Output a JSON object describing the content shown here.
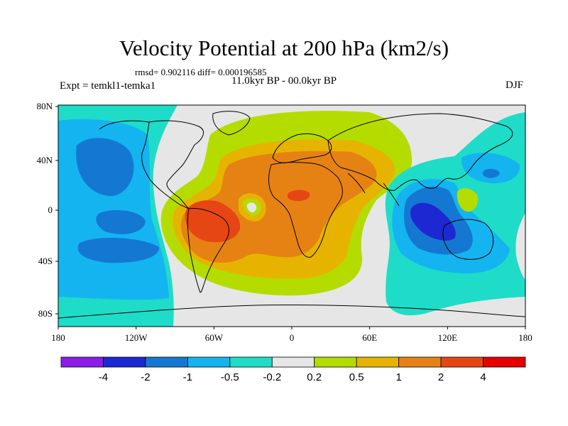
{
  "header": {
    "title": "Velocity Potential at 200 hPa (km2/s)",
    "stats": "rmsd= 0.902116 diff= 0.000196585",
    "experiment": "Expt = temkl1-temka1",
    "period": "11.0kyr BP - 00.0kyr BP",
    "season": "DJF"
  },
  "axes": {
    "lat_ticks": [
      "80N",
      "40N",
      "0",
      "40S",
      "80S"
    ],
    "lon_ticks": [
      "180",
      "120W",
      "60W",
      "0",
      "60E",
      "120E",
      "180"
    ]
  },
  "colorbar": {
    "colors": [
      "#8a1ee6",
      "#1e28d2",
      "#1478d2",
      "#14b4f0",
      "#1edcc8",
      "#e6e6e6",
      "#b4dc00",
      "#e6b400",
      "#e68214",
      "#e64614",
      "#e60000"
    ],
    "labels": [
      "-4",
      "-2",
      "-1",
      "-0.5",
      "-0.2",
      "0.2",
      "0.5",
      "1",
      "2",
      "4"
    ]
  },
  "colors": {
    "land_outline": "#000000",
    "neutral": "#e6e6e6"
  }
}
